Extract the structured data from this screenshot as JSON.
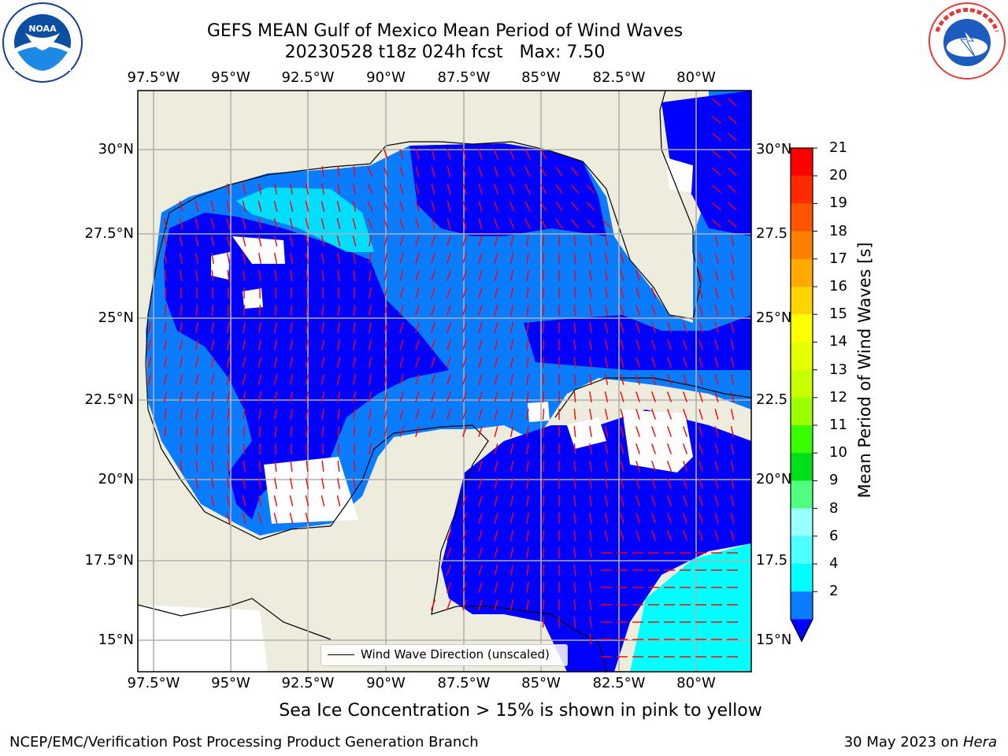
{
  "title": {
    "line1": "GEFS MEAN Gulf of Mexico Mean Period of Wind Waves",
    "line2": "20230528 t18z 024h fcst   Max: 7.50"
  },
  "logos": {
    "left": "noaa-logo",
    "right": "national-weather-service-logo"
  },
  "map": {
    "lon_labels": [
      "97.5°W",
      "95°W",
      "92.5°W",
      "90°W",
      "87.5°W",
      "85°W",
      "82.5°W",
      "80°W"
    ],
    "lat_labels_left": [
      "30°N",
      "27.5°N",
      "25°N",
      "22.5°N",
      "20°N",
      "17.5°N",
      "15°N"
    ],
    "lat_labels_right": [
      "30°N",
      "27.5",
      "25°N",
      "22.5",
      "20°N",
      "17.5",
      "15°N"
    ],
    "legend_label": "Wind Wave Direction (unscaled)",
    "colors": {
      "land": "#eeecdc",
      "ocean_low": "#0000ff",
      "ocean_mid": "#0a7cff",
      "ocean_high": "#00ffff",
      "arrow": "#ff0000",
      "grid": "#b0b0b0"
    }
  },
  "colorbar": {
    "label": "Mean Period of Wind Waves [s]",
    "ticks": [
      "21",
      "20",
      "19",
      "18",
      "17",
      "16",
      "15",
      "14",
      "13",
      "12",
      "11",
      "10",
      "9",
      "8",
      "6",
      "4",
      "2"
    ],
    "colors": [
      "#ff0000",
      "#ff2a00",
      "#ff5500",
      "#ff8000",
      "#ffaa00",
      "#ffd400",
      "#ffff00",
      "#e6ff00",
      "#c8ff00",
      "#9bff00",
      "#38ff00",
      "#00e01a",
      "#51ff80",
      "#9affff",
      "#4dffff",
      "#00ffff",
      "#0a7cff"
    ],
    "extend_color": "#0000ff"
  },
  "footnote": "Sea Ice Concentration > 15% is shown in pink to yellow",
  "credit": "NCEP/EMC/Verification Post Processing Product Generation Branch",
  "date": {
    "text": "30 May 2023 on ",
    "host": "Hera"
  }
}
